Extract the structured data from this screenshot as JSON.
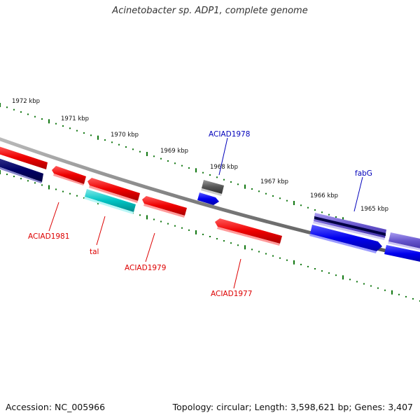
{
  "title": "Acinetobacter sp. ADP1, complete genome",
  "footer": {
    "accession": "Accession: NC_005966",
    "summary": "Topology: circular; Length: 3,598,621 bp; Genes: 3,407"
  },
  "ruler": {
    "tick_labels": [
      "1972 kbp",
      "1971 kbp",
      "1970 kbp",
      "1969 kbp",
      "1968 kbp",
      "1967 kbp",
      "1966 kbp",
      "1965 kbp"
    ]
  },
  "genes": [
    {
      "label": "ACIAD1981",
      "color": "#dd0000"
    },
    {
      "label": "tal",
      "color": "#dd0000"
    },
    {
      "label": "ACIAD1979",
      "color": "#dd0000"
    },
    {
      "label": "ACIAD1978",
      "color": "#0000bb"
    },
    {
      "label": "ACIAD1977",
      "color": "#dd0000"
    },
    {
      "label": "fabG",
      "color": "#0000bb"
    }
  ],
  "colors": {
    "backbone": "#808080",
    "ticks": "#117711",
    "forward_gene": "#ff0000",
    "reverse_gene": "#0000ee",
    "dark_gene": "#000066",
    "cyan_gene": "#00bbbb",
    "gray_gene": "#555555",
    "purple_gene": "#6655cc"
  }
}
